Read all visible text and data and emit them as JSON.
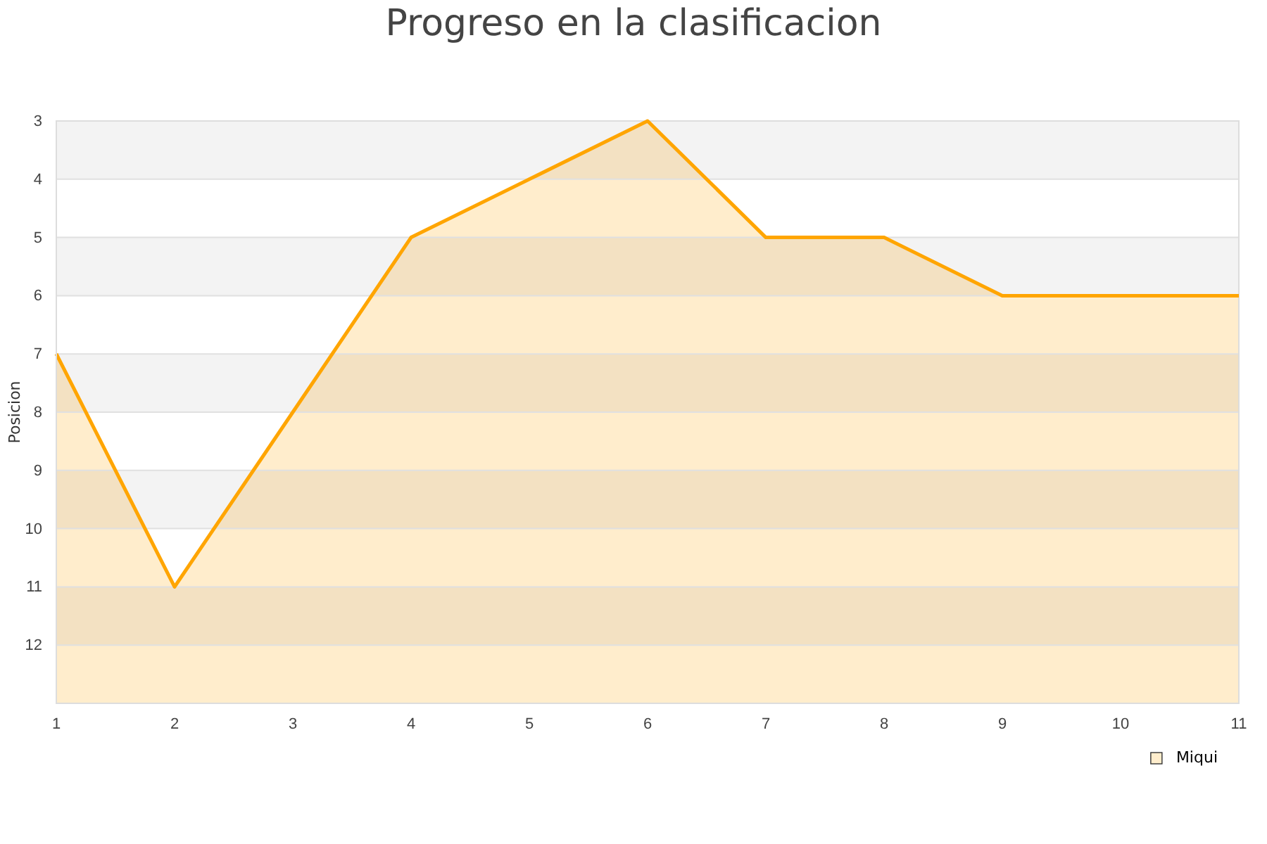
{
  "chart_data": {
    "type": "line",
    "title": "Progreso en la clasificacion",
    "ylabel": "Posicion",
    "x": [
      1,
      2,
      3,
      4,
      5,
      6,
      7,
      8,
      9,
      10,
      11
    ],
    "series": [
      {
        "name": "Miqui",
        "color": "#ffa500",
        "values": [
          7,
          11,
          8,
          5,
          4,
          3,
          5,
          5,
          6,
          6,
          6
        ],
        "lower": [
          13,
          13,
          13,
          13,
          13,
          13,
          13,
          13,
          13,
          13,
          13
        ],
        "upper": [
          7,
          11,
          8,
          5,
          4,
          3,
          5,
          5,
          6,
          6,
          6
        ]
      }
    ],
    "xlim": [
      1,
      11
    ],
    "xticks": [
      1,
      2,
      3,
      4,
      5,
      6,
      7,
      8,
      9,
      10,
      11
    ],
    "ylim": [
      13,
      3
    ],
    "yticks": [
      3,
      4,
      5,
      6,
      7,
      8,
      9,
      10,
      11,
      12
    ],
    "grid": "y",
    "legend": "bottom right",
    "marker": "none",
    "line_style": "solid"
  }
}
